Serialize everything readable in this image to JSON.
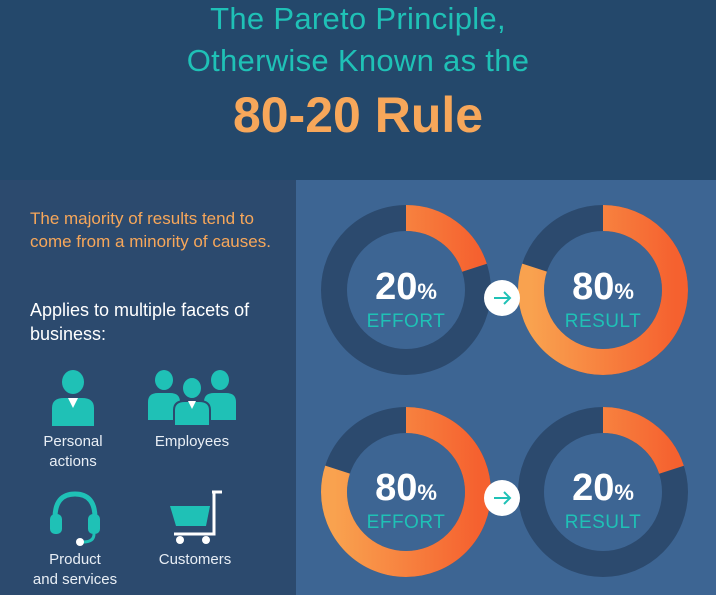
{
  "header": {
    "title_line1": "The Pareto Principle,",
    "title_line2": "Otherwise Known as the",
    "title_main": "80-20 Rule"
  },
  "intro": {
    "text": "The majority of results tend to come from a minority of causes.",
    "applies": "Applies to multiple facets of business:"
  },
  "facets": [
    {
      "label_line1": "Personal",
      "label_line2": "actions",
      "icon": "person-icon"
    },
    {
      "label_line1": "Employees",
      "label_line2": "",
      "icon": "group-icon"
    },
    {
      "label_line1": "Product",
      "label_line2": "and services",
      "icon": "headset-icon"
    },
    {
      "label_line1": "Customers",
      "label_line2": "",
      "icon": "cart-icon"
    }
  ],
  "chart_data": [
    {
      "type": "pie",
      "number": "20",
      "unit": "%",
      "label": "EFFORT",
      "value": 20
    },
    {
      "type": "pie",
      "number": "80",
      "unit": "%",
      "label": "RESULT",
      "value": 80
    },
    {
      "type": "pie",
      "number": "80",
      "unit": "%",
      "label": "EFFORT",
      "value": 80
    },
    {
      "type": "pie",
      "number": "20",
      "unit": "%",
      "label": "RESULT",
      "value": 20
    }
  ],
  "colors": {
    "header_bg": "#24486b",
    "left_bg": "#2c4a6e",
    "right_bg": "#3d6593",
    "teal": "#1fc1b6",
    "orange": "#f7a75a",
    "orange_deep": "#f66b2f",
    "ring_track": "#2c4a6e"
  }
}
